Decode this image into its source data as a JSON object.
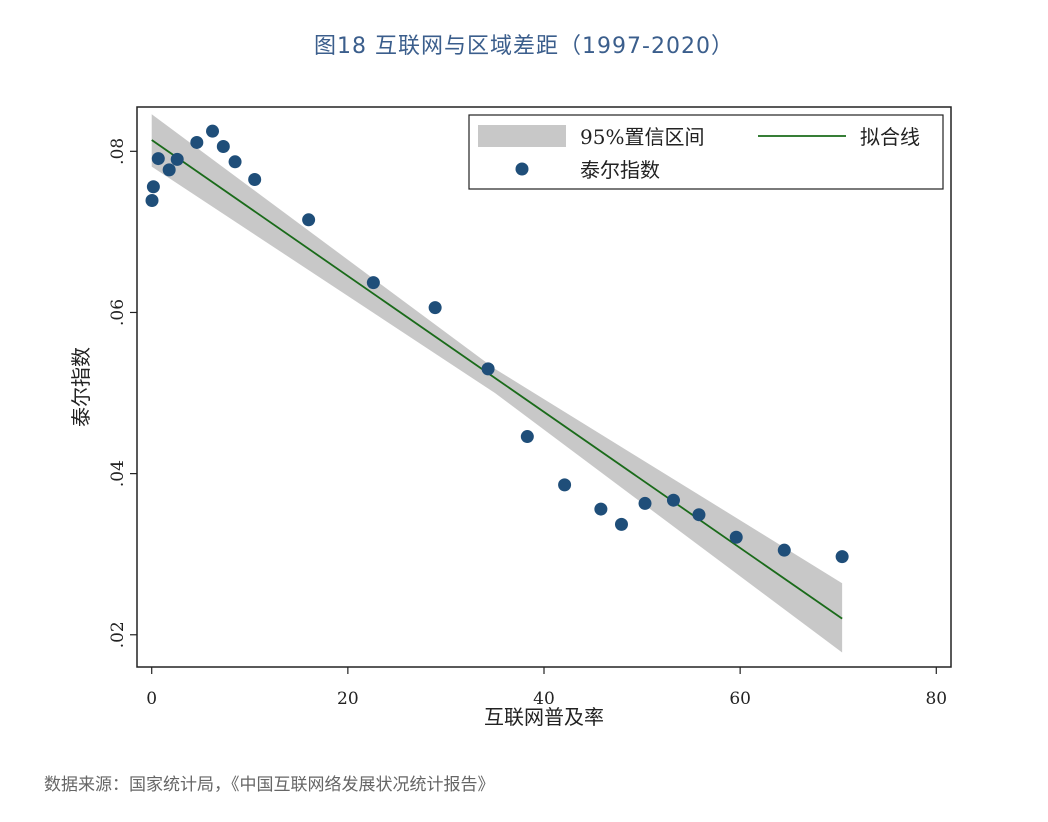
{
  "title": "图18 互联网与区域差距（1997-2020）",
  "source": "数据来源：国家统计局，《中国互联网络发展状况统计报告》",
  "colors": {
    "title": "#3b5e8c",
    "point": "#1f4e79",
    "fit_line": "#1a6b1a",
    "ci_band": "#c8c8c8"
  },
  "chart_data": {
    "type": "scatter",
    "xlabel": "互联网普及率",
    "ylabel": "泰尔指数",
    "xlim": [
      -1.5,
      81.5
    ],
    "ylim": [
      0.016,
      0.0855
    ],
    "x_ticks": [
      0,
      20,
      40,
      60,
      80
    ],
    "x_tick_labels": [
      "0",
      "20",
      "40",
      "60",
      "80"
    ],
    "y_ticks": [
      0.02,
      0.04,
      0.06,
      0.08
    ],
    "y_tick_labels": [
      ".02",
      ".04",
      ".06",
      ".08"
    ],
    "grid": false,
    "legend": {
      "placement": "top-right",
      "entries": [
        {
          "label": "95%置信区间",
          "kind": "band"
        },
        {
          "label": "拟合线",
          "kind": "line"
        },
        {
          "label": "泰尔指数",
          "kind": "point"
        }
      ]
    },
    "scatter_points": [
      {
        "x": 0.03,
        "y": 0.0739
      },
      {
        "x": 0.17,
        "y": 0.0756
      },
      {
        "x": 0.67,
        "y": 0.0791
      },
      {
        "x": 1.78,
        "y": 0.0777
      },
      {
        "x": 2.6,
        "y": 0.079
      },
      {
        "x": 4.6,
        "y": 0.0811
      },
      {
        "x": 6.2,
        "y": 0.0825
      },
      {
        "x": 7.3,
        "y": 0.0806
      },
      {
        "x": 8.5,
        "y": 0.0787
      },
      {
        "x": 10.5,
        "y": 0.0765
      },
      {
        "x": 16.0,
        "y": 0.0715
      },
      {
        "x": 22.6,
        "y": 0.0637
      },
      {
        "x": 28.9,
        "y": 0.0606
      },
      {
        "x": 34.3,
        "y": 0.053
      },
      {
        "x": 38.3,
        "y": 0.0446
      },
      {
        "x": 42.1,
        "y": 0.0386
      },
      {
        "x": 45.8,
        "y": 0.0356
      },
      {
        "x": 47.9,
        "y": 0.0337
      },
      {
        "x": 50.3,
        "y": 0.0363
      },
      {
        "x": 53.2,
        "y": 0.0367
      },
      {
        "x": 55.8,
        "y": 0.0349
      },
      {
        "x": 59.6,
        "y": 0.0321
      },
      {
        "x": 64.5,
        "y": 0.0305
      },
      {
        "x": 70.4,
        "y": 0.0297
      }
    ],
    "fit_line": {
      "x": [
        0,
        70.4
      ],
      "y": [
        0.0814,
        0.022
      ]
    },
    "ci_band": {
      "x": [
        0,
        35,
        70.4
      ],
      "upper": [
        0.0846,
        0.053,
        0.0264
      ],
      "lower": [
        0.0781,
        0.05,
        0.0178
      ]
    }
  }
}
